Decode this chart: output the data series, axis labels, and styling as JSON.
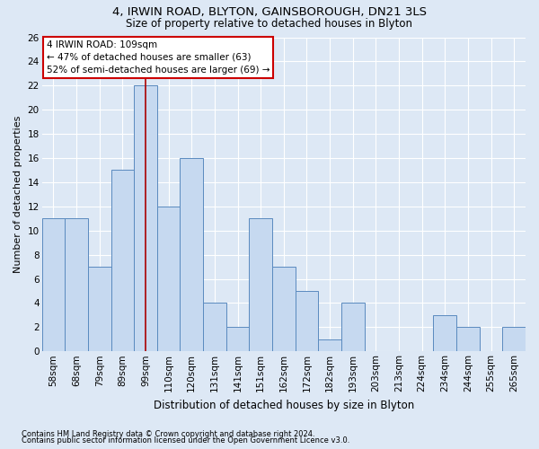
{
  "title1": "4, IRWIN ROAD, BLYTON, GAINSBOROUGH, DN21 3LS",
  "title2": "Size of property relative to detached houses in Blyton",
  "xlabel": "Distribution of detached houses by size in Blyton",
  "ylabel": "Number of detached properties",
  "categories": [
    "58sqm",
    "68sqm",
    "79sqm",
    "89sqm",
    "99sqm",
    "110sqm",
    "120sqm",
    "131sqm",
    "141sqm",
    "151sqm",
    "162sqm",
    "172sqm",
    "182sqm",
    "193sqm",
    "203sqm",
    "213sqm",
    "224sqm",
    "234sqm",
    "244sqm",
    "255sqm",
    "265sqm"
  ],
  "values": [
    11,
    11,
    7,
    15,
    22,
    12,
    16,
    4,
    2,
    11,
    7,
    5,
    1,
    4,
    0,
    0,
    0,
    3,
    2,
    0,
    2
  ],
  "bar_color": "#c6d9f0",
  "bar_edge_color": "#5a8abf",
  "vline_index": 4.5,
  "annotation_line1": "4 IRWIN ROAD: 109sqm",
  "annotation_line2": "← 47% of detached houses are smaller (63)",
  "annotation_line3": "52% of semi-detached houses are larger (69) →",
  "ylim": [
    0,
    26
  ],
  "yticks": [
    0,
    2,
    4,
    6,
    8,
    10,
    12,
    14,
    16,
    18,
    20,
    22,
    24,
    26
  ],
  "footnote1": "Contains HM Land Registry data © Crown copyright and database right 2024.",
  "footnote2": "Contains public sector information licensed under the Open Government Licence v3.0.",
  "background_color": "#dde8f5",
  "plot_background_color": "#dde8f5",
  "grid_color": "#ffffff",
  "vline_color": "#aa0000",
  "annotation_box_color": "#ffffff",
  "annotation_box_edge": "#cc0000",
  "title1_fontsize": 9.5,
  "title2_fontsize": 8.5,
  "xlabel_fontsize": 8.5,
  "ylabel_fontsize": 8,
  "tick_fontsize": 7.5,
  "annot_fontsize": 7.5,
  "footnote_fontsize": 6
}
